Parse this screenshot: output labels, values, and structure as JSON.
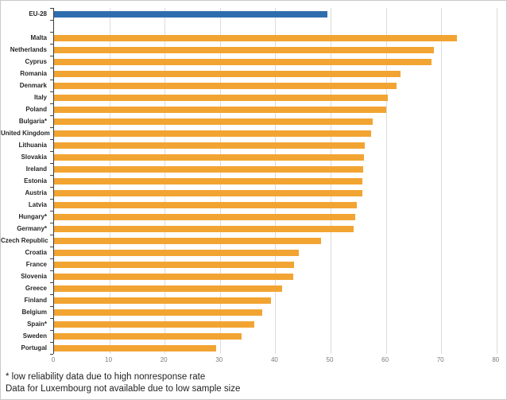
{
  "chart_data": {
    "type": "bar",
    "orientation": "horizontal",
    "title": "",
    "xlabel": "",
    "ylabel": "",
    "xlim": [
      0,
      80
    ],
    "x_ticks": [
      0,
      10,
      20,
      30,
      40,
      50,
      60,
      70,
      80
    ],
    "grid": true,
    "legend": "none",
    "colors": {
      "eu_bar": "#2e6dad",
      "country_bar": "#f2a432",
      "gridline": "#dcdcdc",
      "axis_line": "#3f3f3f",
      "axis_tick_label": "#7b7b7b",
      "category_label": "#262626"
    },
    "rows": [
      {
        "label": "EU-28",
        "value": 49.4,
        "kind": "eu"
      },
      {
        "label": "",
        "value": null,
        "kind": "spacer"
      },
      {
        "label": "Malta",
        "value": 72.8,
        "kind": "country"
      },
      {
        "label": "Netherlands",
        "value": 68.7,
        "kind": "country"
      },
      {
        "label": "Cyprus",
        "value": 68.2,
        "kind": "country"
      },
      {
        "label": "Romania",
        "value": 62.7,
        "kind": "country"
      },
      {
        "label": "Denmark",
        "value": 61.9,
        "kind": "country"
      },
      {
        "label": "Italy",
        "value": 60.3,
        "kind": "country"
      },
      {
        "label": "Poland",
        "value": 60.0,
        "kind": "country"
      },
      {
        "label": "Bulgaria*",
        "value": 57.6,
        "kind": "country"
      },
      {
        "label": "United Kingdom",
        "value": 57.3,
        "kind": "country"
      },
      {
        "label": "Lithuania",
        "value": 56.2,
        "kind": "country"
      },
      {
        "label": "Slovakia",
        "value": 56.1,
        "kind": "country"
      },
      {
        "label": "Ireland",
        "value": 55.9,
        "kind": "country"
      },
      {
        "label": "Estonia",
        "value": 55.8,
        "kind": "country"
      },
      {
        "label": "Austria",
        "value": 55.7,
        "kind": "country"
      },
      {
        "label": "Latvia",
        "value": 54.7,
        "kind": "country"
      },
      {
        "label": "Hungary*",
        "value": 54.5,
        "kind": "country"
      },
      {
        "label": "Germany*",
        "value": 54.1,
        "kind": "country"
      },
      {
        "label": "Czech Republic",
        "value": 48.3,
        "kind": "country"
      },
      {
        "label": "Croatia",
        "value": 44.2,
        "kind": "country"
      },
      {
        "label": "France",
        "value": 43.4,
        "kind": "country"
      },
      {
        "label": "Slovenia",
        "value": 43.2,
        "kind": "country"
      },
      {
        "label": "Greece",
        "value": 41.3,
        "kind": "country"
      },
      {
        "label": "Finland",
        "value": 39.2,
        "kind": "country"
      },
      {
        "label": "Belgium",
        "value": 37.7,
        "kind": "country"
      },
      {
        "label": "Spain*",
        "value": 36.2,
        "kind": "country"
      },
      {
        "label": "Sweden",
        "value": 33.9,
        "kind": "country"
      },
      {
        "label": "Portugal",
        "value": 29.3,
        "kind": "country"
      }
    ]
  },
  "footnotes": [
    "* low reliability data due to high nonresponse rate",
    "Data for Luxembourg not available due to low sample size"
  ]
}
